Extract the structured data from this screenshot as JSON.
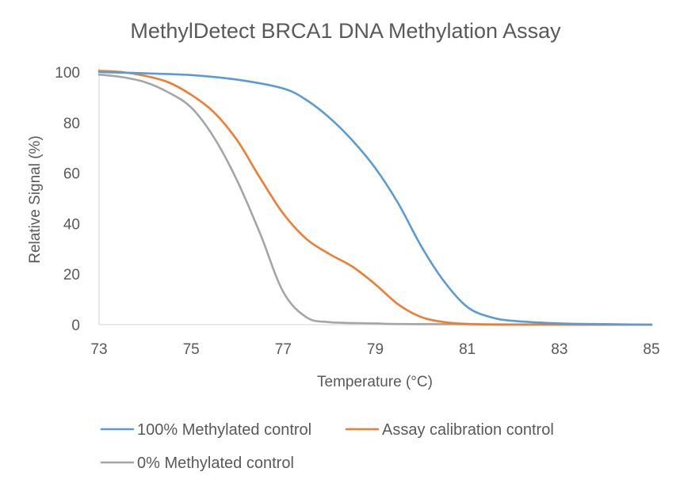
{
  "chart_data": {
    "type": "line",
    "title": "MethylDetect BRCA1 DNA Methylation Assay",
    "xlabel": "Temperature (°C)",
    "ylabel": "Relative Signal (%)",
    "xlim": [
      73,
      85
    ],
    "ylim": [
      0,
      100
    ],
    "xticks": [
      "73",
      "75",
      "77",
      "79",
      "81",
      "83",
      "85"
    ],
    "yticks": [
      "0",
      "20",
      "40",
      "60",
      "80",
      "100"
    ],
    "grid": false,
    "legend_position": "bottom",
    "series": [
      {
        "name": "100% Methylated control",
        "color": "#5B9BD5",
        "points": [
          [
            73,
            100
          ],
          [
            74,
            99.5
          ],
          [
            75,
            98.8
          ],
          [
            76,
            97
          ],
          [
            77,
            93.5
          ],
          [
            77.5,
            89
          ],
          [
            78,
            82
          ],
          [
            78.5,
            73
          ],
          [
            79,
            62
          ],
          [
            79.5,
            48
          ],
          [
            80,
            31
          ],
          [
            80.5,
            17
          ],
          [
            81,
            7
          ],
          [
            81.5,
            3
          ],
          [
            82,
            1.5
          ],
          [
            83,
            0.5
          ],
          [
            84,
            0.2
          ],
          [
            85,
            0
          ]
        ]
      },
      {
        "name": "Assay calibration control",
        "color": "#ED7D31",
        "points": [
          [
            73,
            100.5
          ],
          [
            73.5,
            100
          ],
          [
            74,
            98.5
          ],
          [
            74.5,
            96
          ],
          [
            75,
            91
          ],
          [
            75.5,
            84
          ],
          [
            76,
            73
          ],
          [
            76.5,
            58
          ],
          [
            77,
            44
          ],
          [
            77.5,
            34
          ],
          [
            78,
            28
          ],
          [
            78.5,
            23
          ],
          [
            79,
            16
          ],
          [
            79.5,
            8
          ],
          [
            80,
            3
          ],
          [
            80.5,
            1
          ],
          [
            81,
            0.3
          ],
          [
            82,
            0
          ],
          [
            85,
            0
          ]
        ]
      },
      {
        "name": "0% Methylated control",
        "color": "#A5A5A5",
        "points": [
          [
            73,
            99
          ],
          [
            73.5,
            98
          ],
          [
            74,
            96
          ],
          [
            74.5,
            92
          ],
          [
            75,
            86
          ],
          [
            75.5,
            74
          ],
          [
            76,
            57
          ],
          [
            76.5,
            36
          ],
          [
            77,
            13
          ],
          [
            77.5,
            3
          ],
          [
            78,
            1
          ],
          [
            79,
            0.5
          ],
          [
            80,
            0.2
          ],
          [
            85,
            0
          ]
        ]
      }
    ]
  }
}
